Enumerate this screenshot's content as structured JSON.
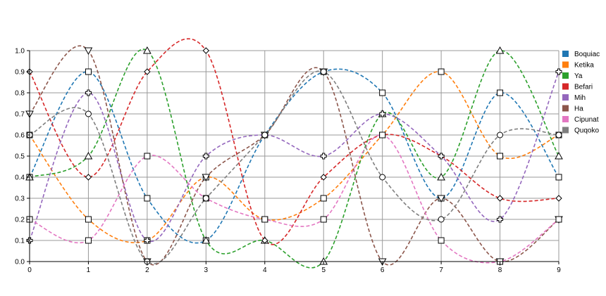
{
  "chart_data": {
    "type": "line",
    "x": [
      0,
      1,
      2,
      3,
      4,
      5,
      6,
      7,
      8,
      9
    ],
    "xlim": [
      0,
      9
    ],
    "ylim": [
      0,
      1
    ],
    "xticks": [
      "0",
      "1",
      "2",
      "3",
      "4",
      "5",
      "6",
      "7",
      "8",
      "9"
    ],
    "yticks": [
      "0.0",
      "0.1",
      "0.2",
      "0.3",
      "0.4",
      "0.5",
      "0.6",
      "0.7",
      "0.8",
      "0.9",
      "1.0"
    ],
    "grid": true,
    "legend_position": "right",
    "line_style": "dashed-smooth",
    "series": [
      {
        "name": "Boquiac",
        "color": "#1f77b4",
        "marker": "square",
        "values": [
          0.4,
          0.9,
          0.3,
          0.1,
          0.6,
          0.9,
          0.8,
          0.3,
          0.8,
          0.4
        ]
      },
      {
        "name": "Ketika",
        "color": "#ff7f0e",
        "marker": "square",
        "values": [
          0.6,
          0.2,
          0.1,
          0.4,
          0.2,
          0.3,
          0.6,
          0.9,
          0.5,
          0.6
        ]
      },
      {
        "name": "Ya",
        "color": "#2ca02c",
        "marker": "triangle",
        "values": [
          0.4,
          0.5,
          1.0,
          0.1,
          0.1,
          0.0,
          0.7,
          0.4,
          1.0,
          0.5
        ]
      },
      {
        "name": "Befari",
        "color": "#d62728",
        "marker": "diamond",
        "values": [
          0.9,
          0.4,
          0.9,
          1.0,
          0.1,
          0.4,
          0.6,
          0.5,
          0.3,
          0.3
        ]
      },
      {
        "name": "Mih",
        "color": "#9467bd",
        "marker": "plus",
        "values": [
          0.1,
          0.8,
          0.1,
          0.5,
          0.6,
          0.5,
          0.7,
          0.5,
          0.2,
          0.9
        ]
      },
      {
        "name": "Ha",
        "color": "#8c564b",
        "marker": "triangle-down",
        "values": [
          0.7,
          1.0,
          0.0,
          0.4,
          0.6,
          0.9,
          0.0,
          0.3,
          0.0,
          0.2
        ]
      },
      {
        "name": "Cipunat",
        "color": "#e377c2",
        "marker": "square",
        "values": [
          0.2,
          0.1,
          0.5,
          0.3,
          0.2,
          0.2,
          0.6,
          0.1,
          0.0,
          0.2
        ]
      },
      {
        "name": "Quqoko",
        "color": "#7f7f7f",
        "marker": "circle",
        "values": [
          0.6,
          0.7,
          0.0,
          0.3,
          0.6,
          0.9,
          0.4,
          0.2,
          0.6,
          0.6
        ]
      }
    ]
  }
}
